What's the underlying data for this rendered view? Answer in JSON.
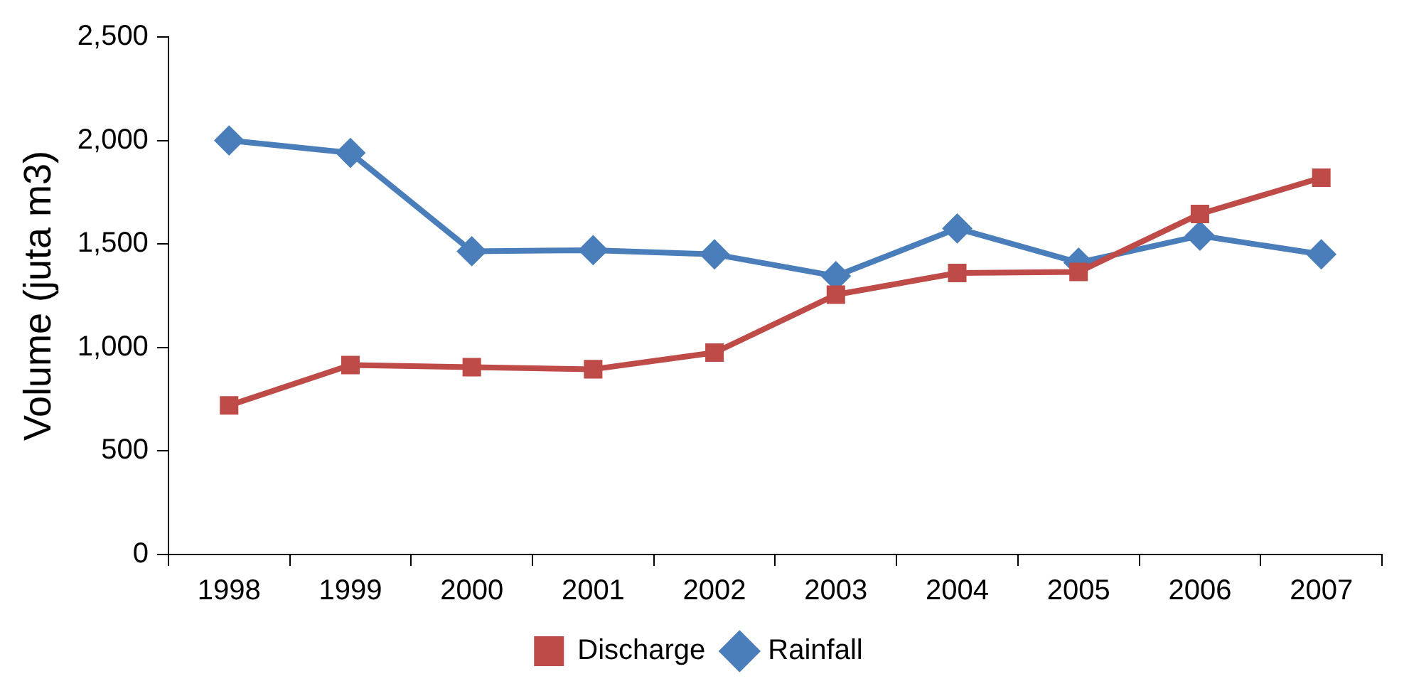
{
  "chart_data": {
    "type": "line",
    "ylabel": "Volume (juta m3)",
    "categories": [
      "1998",
      "1999",
      "2000",
      "2001",
      "2002",
      "2003",
      "2004",
      "2005",
      "2006",
      "2007"
    ],
    "series": [
      {
        "name": "Rainfall",
        "color": "#4a7ebb",
        "marker": "diamond",
        "values": [
          2000,
          1940,
          1465,
          1470,
          1450,
          1345,
          1575,
          1410,
          1540,
          1450
        ]
      },
      {
        "name": "Discharge",
        "color": "#be4b48",
        "marker": "square",
        "values": [
          720,
          915,
          905,
          895,
          975,
          1255,
          1360,
          1365,
          1645,
          1820
        ]
      }
    ],
    "ylim": [
      0,
      2500
    ],
    "yticks": [
      0,
      500,
      {
        "value": 1000,
        "label": "1,000"
      },
      {
        "value": 1500,
        "label": "1,500"
      },
      {
        "value": 2000,
        "label": "2,000"
      },
      {
        "value": 2500,
        "label": "2,500"
      }
    ],
    "grid": false,
    "legend": "bottom"
  }
}
